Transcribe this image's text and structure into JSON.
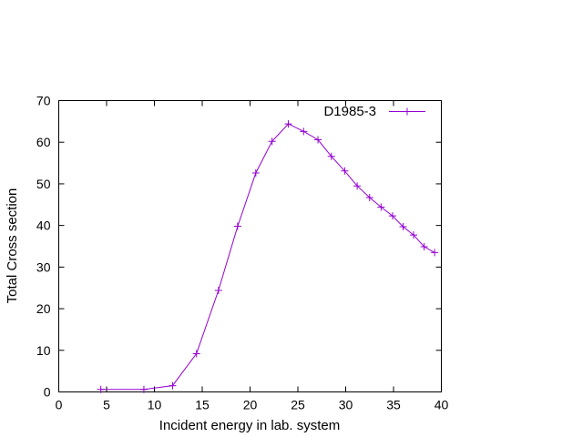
{
  "chart_data": {
    "type": "line",
    "xlabel": "Incident energy in lab. system",
    "ylabel": "Total Cross section",
    "xlim": [
      0,
      40
    ],
    "ylim": [
      0,
      70
    ],
    "xticks": [
      0,
      5,
      10,
      15,
      20,
      25,
      30,
      35,
      40
    ],
    "yticks": [
      0,
      10,
      20,
      30,
      40,
      50,
      60,
      70
    ],
    "grid": false,
    "legend_position": "top-right",
    "series": [
      {
        "name": "D1985-3",
        "color": "#9400d3",
        "marker": "plus",
        "x": [
          4.4,
          8.9,
          11.9,
          14.4,
          16.7,
          18.7,
          20.6,
          22.3,
          24.0,
          25.6,
          27.1,
          28.5,
          29.9,
          31.2,
          32.5,
          33.7,
          34.9,
          36.0,
          37.1,
          38.2,
          39.3
        ],
        "y": [
          0.6,
          0.6,
          1.5,
          9.2,
          24.4,
          39.8,
          52.6,
          60.2,
          64.4,
          62.6,
          60.6,
          56.6,
          53.1,
          49.5,
          46.7,
          44.4,
          42.3,
          39.7,
          37.7,
          34.9,
          33.5
        ]
      }
    ]
  }
}
